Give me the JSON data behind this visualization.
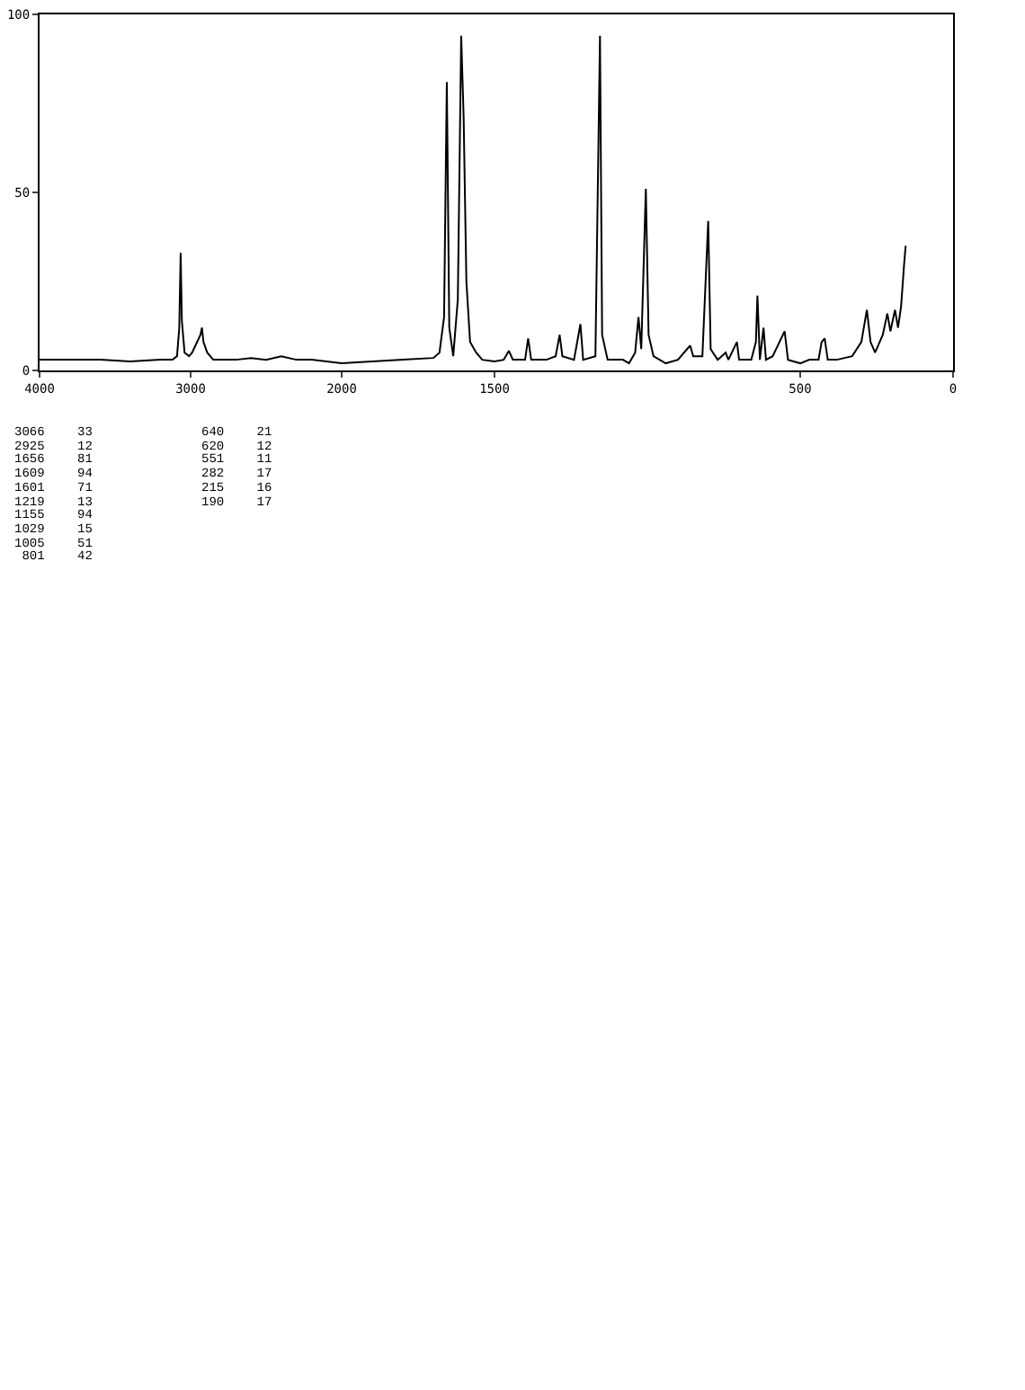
{
  "chart_data": [
    {
      "type": "line",
      "xlim": [
        4000,
        2000
      ],
      "xticks": [
        4000,
        3000,
        2000
      ],
      "ylim": [
        0,
        100
      ],
      "yticks": [
        0,
        50,
        100
      ],
      "line_style": "solid",
      "series": [
        {
          "color": "#000000",
          "x": [
            4000,
            3800,
            3600,
            3400,
            3200,
            3120,
            3090,
            3075,
            3066,
            3058,
            3040,
            3010,
            2990,
            2935,
            2925,
            2915,
            2890,
            2850,
            2700,
            2600,
            2500,
            2400,
            2300,
            2200,
            2100,
            2000
          ],
          "values": [
            3,
            3,
            3,
            2.5,
            3,
            3,
            4,
            12,
            33,
            14,
            5,
            4,
            5,
            10,
            12,
            8,
            5,
            3,
            3,
            3.5,
            3,
            4,
            3,
            3,
            2.5,
            2
          ]
        }
      ]
    },
    {
      "type": "line",
      "xlim": [
        2000,
        0
      ],
      "xticks": [
        {
          "value": 2000,
          "label": null
        },
        1500,
        500,
        0
      ],
      "ylim": [
        0,
        100
      ],
      "yticks": [
        0,
        50,
        100
      ],
      "tick_labels": "x",
      "line_style": "solid",
      "series": [
        {
          "color": "#000000",
          "x": [
            2000,
            1900,
            1800,
            1700,
            1680,
            1665,
            1656,
            1648,
            1635,
            1620,
            1609,
            1601,
            1592,
            1580,
            1560,
            1540,
            1500,
            1470,
            1453,
            1440,
            1400,
            1390,
            1380,
            1330,
            1300,
            1287,
            1278,
            1240,
            1219,
            1210,
            1170,
            1155,
            1148,
            1130,
            1080,
            1060,
            1040,
            1029,
            1020,
            1005,
            996,
            980,
            940,
            900,
            870,
            860,
            850,
            820,
            801,
            793,
            770,
            744,
            735,
            707,
            700,
            660,
            645,
            640,
            632,
            620,
            612,
            590,
            551,
            540,
            500,
            470,
            440,
            430,
            420,
            410,
            380,
            330,
            300,
            282,
            270,
            255,
            230,
            215,
            205,
            190,
            180,
            170,
            160,
            155
          ],
          "values": [
            2,
            2.5,
            3,
            3.5,
            5,
            15,
            81,
            12,
            4,
            20,
            94,
            71,
            25,
            8,
            5,
            3,
            2.5,
            3,
            5.5,
            3,
            3,
            9,
            3,
            3,
            4,
            10,
            4,
            3,
            13,
            3,
            4,
            94,
            10,
            3,
            3,
            2,
            5,
            15,
            6,
            51,
            10,
            4,
            2,
            3,
            6,
            7,
            4,
            4,
            42,
            6,
            3,
            5,
            3,
            8,
            3,
            3,
            8,
            21,
            3,
            12,
            3,
            4,
            11,
            3,
            2,
            3,
            3,
            8,
            9,
            3,
            3,
            4,
            8,
            17,
            8,
            5,
            10,
            16,
            11,
            17,
            12,
            18,
            30,
            35
          ]
        }
      ],
      "annotations": [
        "3066 33",
        "2925 12",
        "1656 81",
        "1609 94",
        "1601 71",
        "1219 13",
        "1155 94",
        "1029 15",
        "1005 51",
        "801 42",
        "640 21",
        "620 12",
        "551 11",
        "282 17",
        "215 16",
        "190 17"
      ]
    }
  ]
}
